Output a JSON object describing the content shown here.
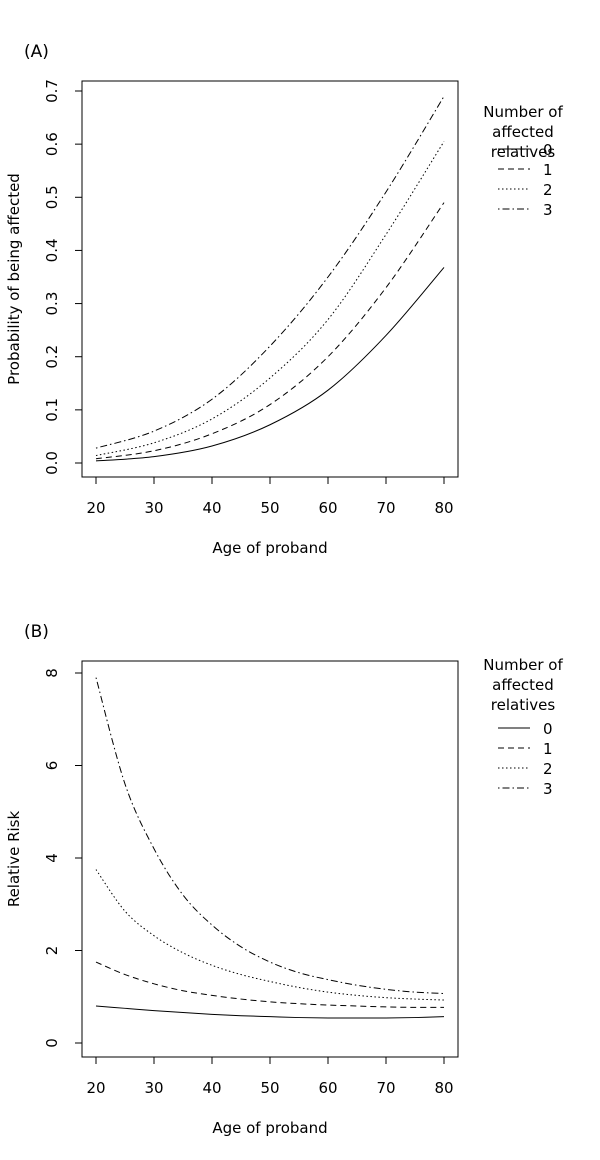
{
  "chart_data": [
    {
      "panel_label": "(A)",
      "type": "line",
      "xlabel": "Age of proband",
      "ylabel": "Probability of being affected",
      "xlim": [
        20,
        80
      ],
      "ylim": [
        0,
        0.7
      ],
      "xticks": [
        20,
        30,
        40,
        50,
        60,
        70,
        80
      ],
      "yticks": [
        0.0,
        0.1,
        0.2,
        0.3,
        0.4,
        0.5,
        0.6,
        0.7
      ],
      "ytick_labels": [
        "0.0",
        "0.1",
        "0.2",
        "0.3",
        "0.4",
        "0.5",
        "0.6",
        "0.7"
      ],
      "grid": false,
      "legend": {
        "placement": "right",
        "title_lines": [
          "Number of",
          "affected",
          "relatives"
        ],
        "entries": [
          "0",
          "1",
          "2",
          "3"
        ]
      },
      "x": [
        20,
        30,
        40,
        50,
        60,
        70,
        80
      ],
      "series": [
        {
          "name": "0",
          "line_style": "solid",
          "values": [
            0.004,
            0.012,
            0.032,
            0.072,
            0.137,
            0.24,
            0.368
          ]
        },
        {
          "name": "1",
          "line_style": "dashed",
          "values": [
            0.008,
            0.023,
            0.055,
            0.11,
            0.2,
            0.33,
            0.49
          ]
        },
        {
          "name": "2",
          "line_style": "dotted",
          "values": [
            0.014,
            0.038,
            0.083,
            0.16,
            0.27,
            0.43,
            0.605
          ]
        },
        {
          "name": "3",
          "line_style": "dotdash",
          "values": [
            0.028,
            0.06,
            0.12,
            0.22,
            0.35,
            0.51,
            0.69
          ]
        }
      ]
    },
    {
      "panel_label": "(B)",
      "type": "line",
      "xlabel": "Age of proband",
      "ylabel": "Relative Risk",
      "xlim": [
        20,
        80
      ],
      "ylim": [
        0,
        8
      ],
      "xticks": [
        20,
        30,
        40,
        50,
        60,
        70,
        80
      ],
      "yticks": [
        0,
        2,
        4,
        6,
        8
      ],
      "ytick_labels": [
        "0",
        "2",
        "4",
        "6",
        "8"
      ],
      "grid": false,
      "legend": {
        "placement": "right",
        "title_lines": [
          "Number of",
          "affected",
          "relatives"
        ],
        "entries": [
          "0",
          "1",
          "2",
          "3"
        ]
      },
      "x": [
        20,
        25,
        30,
        35,
        40,
        45,
        50,
        55,
        60,
        65,
        70,
        75,
        80
      ],
      "series": [
        {
          "name": "0",
          "line_style": "solid",
          "values": [
            0.8,
            0.75,
            0.7,
            0.66,
            0.62,
            0.59,
            0.57,
            0.55,
            0.54,
            0.54,
            0.54,
            0.55,
            0.57
          ]
        },
        {
          "name": "1",
          "line_style": "dashed",
          "values": [
            1.75,
            1.48,
            1.28,
            1.13,
            1.03,
            0.95,
            0.89,
            0.85,
            0.82,
            0.8,
            0.78,
            0.77,
            0.77
          ]
        },
        {
          "name": "2",
          "line_style": "dotted",
          "values": [
            3.75,
            2.85,
            2.32,
            1.95,
            1.68,
            1.48,
            1.33,
            1.2,
            1.1,
            1.03,
            0.98,
            0.95,
            0.93
          ]
        },
        {
          "name": "3",
          "line_style": "dotdash",
          "values": [
            7.9,
            5.6,
            4.2,
            3.2,
            2.55,
            2.08,
            1.75,
            1.52,
            1.37,
            1.25,
            1.16,
            1.1,
            1.07
          ]
        }
      ]
    }
  ]
}
